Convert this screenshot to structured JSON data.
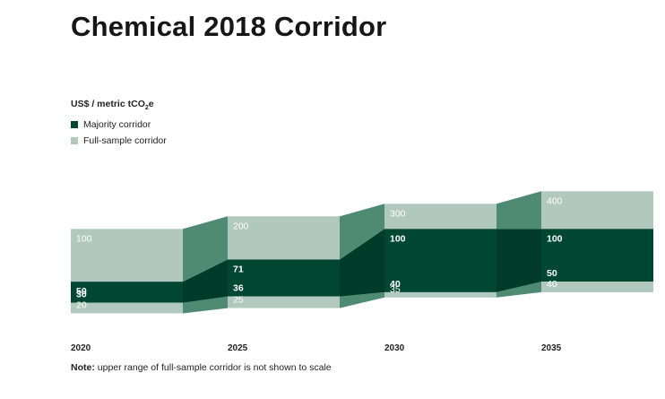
{
  "title": "Chemical 2018 Corridor",
  "legend": {
    "unit_prefix": "US$ / metric tCO",
    "unit_sub": "2",
    "unit_suffix": "e",
    "majority_label": "Majority corridor",
    "full_label": "Full-sample corridor"
  },
  "note": {
    "label": "Note:",
    "text": " upper range of full-sample corridor is not shown to scale"
  },
  "colors": {
    "majority": "#004731",
    "full": "#b1c8bf",
    "connector_light": "#4e8b72",
    "connector_dark": "#003a28",
    "label_on_dark": "#ffffff",
    "label_on_light": "#ffffff",
    "axis_text": "#222222"
  },
  "chart_data": {
    "type": "area",
    "title": "Chemical 2018 Corridor",
    "ylabel": "US$ / metric tCO2e",
    "x": [
      "2020",
      "2025",
      "2030",
      "2035"
    ],
    "series": [
      {
        "name": "Majority corridor",
        "low": [
          30,
          36,
          40,
          50
        ],
        "high": [
          50,
          71,
          100,
          100
        ]
      },
      {
        "name": "Full-sample corridor",
        "low": [
          20,
          25,
          35,
          40
        ],
        "high": [
          100,
          200,
          300,
          400
        ]
      }
    ],
    "labels": {
      "full_high": [
        "100",
        "200",
        "300",
        "400"
      ],
      "majority_high": [
        "50",
        "71",
        "100",
        "100"
      ],
      "majority_low": [
        "30",
        "36",
        "40",
        "50"
      ],
      "full_low": [
        "20",
        "25",
        "35",
        "40"
      ]
    },
    "note": "upper range of full-sample corridor is not shown to scale"
  }
}
